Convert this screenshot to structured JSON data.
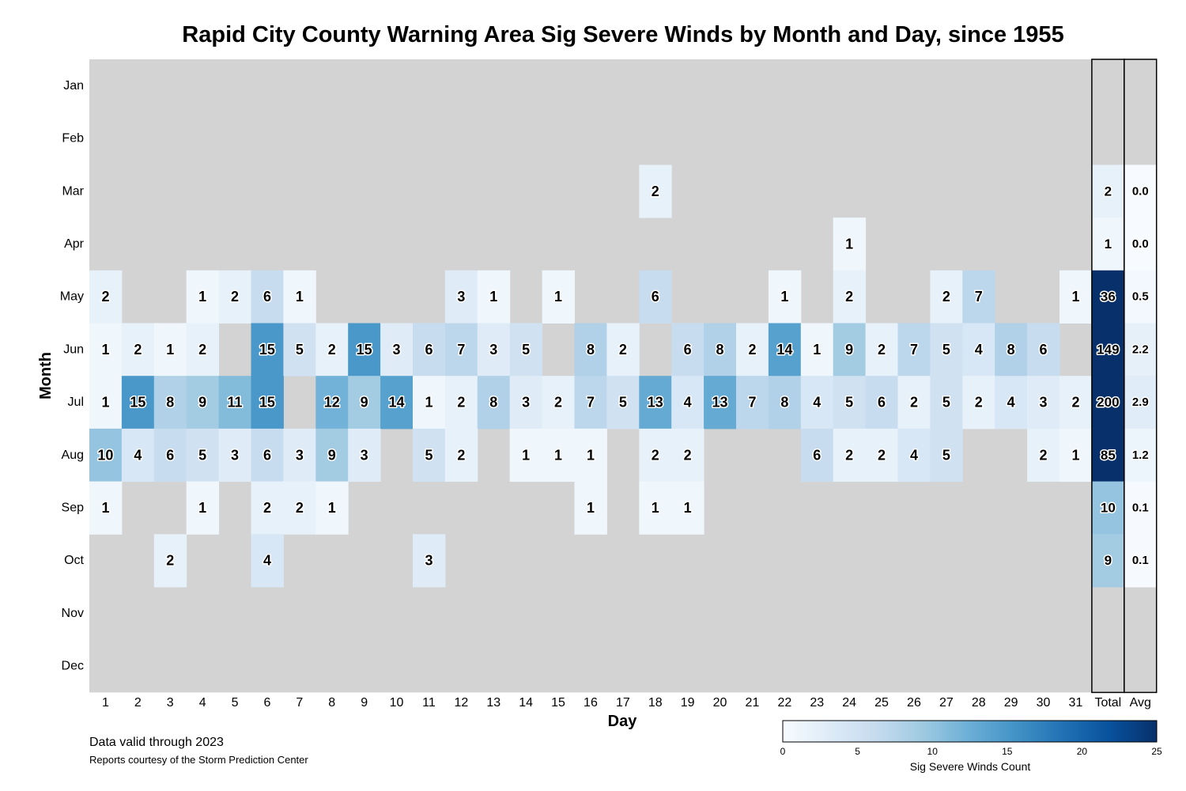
{
  "title": "Rapid City County Warning Area Sig Severe Winds by Month and Day, since 1955",
  "footnote_primary": "Data valid through 2023",
  "footnote_secondary": "Reports courtesy of the Storm Prediction Center",
  "colorbar": {
    "label": "Sig Severe Winds Count",
    "ticks": [
      0,
      5,
      10,
      15,
      20,
      25
    ],
    "min": 0,
    "max": 25,
    "colors": [
      "#f7fbff",
      "#deebf7",
      "#c6dbef",
      "#9ecae1",
      "#6baed6",
      "#4292c6",
      "#2171b5",
      "#08519c",
      "#08306b"
    ]
  },
  "chart_data": {
    "type": "heatmap",
    "title": "Rapid City County Warning Area Sig Severe Winds by Month and Day, since 1955",
    "xlabel": "Day",
    "ylabel": "Month",
    "x_tick_labels": [
      "1",
      "2",
      "3",
      "4",
      "5",
      "6",
      "7",
      "8",
      "9",
      "10",
      "11",
      "12",
      "13",
      "14",
      "15",
      "16",
      "17",
      "18",
      "19",
      "20",
      "21",
      "22",
      "23",
      "24",
      "25",
      "26",
      "27",
      "28",
      "29",
      "30",
      "31",
      "Total",
      "Avg"
    ],
    "months": [
      "Jan",
      "Feb",
      "Mar",
      "Apr",
      "May",
      "Jun",
      "Jul",
      "Aug",
      "Sep",
      "Oct",
      "Nov",
      "Dec"
    ],
    "missing_color": "#d3d3d3",
    "values": [
      [
        null,
        null,
        null,
        null,
        null,
        null,
        null,
        null,
        null,
        null,
        null,
        null,
        null,
        null,
        null,
        null,
        null,
        null,
        null,
        null,
        null,
        null,
        null,
        null,
        null,
        null,
        null,
        null,
        null,
        null,
        null
      ],
      [
        null,
        null,
        null,
        null,
        null,
        null,
        null,
        null,
        null,
        null,
        null,
        null,
        null,
        null,
        null,
        null,
        null,
        null,
        null,
        null,
        null,
        null,
        null,
        null,
        null,
        null,
        null,
        null,
        null,
        null,
        null
      ],
      [
        null,
        null,
        null,
        null,
        null,
        null,
        null,
        null,
        null,
        null,
        null,
        null,
        null,
        null,
        null,
        null,
        null,
        2,
        null,
        null,
        null,
        null,
        null,
        null,
        null,
        null,
        null,
        null,
        null,
        null,
        null
      ],
      [
        null,
        null,
        null,
        null,
        null,
        null,
        null,
        null,
        null,
        null,
        null,
        null,
        null,
        null,
        null,
        null,
        null,
        null,
        null,
        null,
        null,
        null,
        null,
        1,
        null,
        null,
        null,
        null,
        null,
        null,
        null
      ],
      [
        2,
        null,
        null,
        1,
        2,
        6,
        1,
        null,
        null,
        null,
        null,
        3,
        1,
        null,
        1,
        null,
        null,
        6,
        null,
        null,
        null,
        1,
        null,
        2,
        null,
        null,
        2,
        7,
        null,
        null,
        1
      ],
      [
        1,
        2,
        1,
        2,
        null,
        15,
        5,
        2,
        15,
        3,
        6,
        7,
        3,
        5,
        null,
        8,
        2,
        null,
        6,
        8,
        2,
        14,
        1,
        9,
        2,
        7,
        5,
        4,
        8,
        6,
        null
      ],
      [
        1,
        15,
        8,
        9,
        11,
        15,
        null,
        12,
        9,
        14,
        1,
        2,
        8,
        3,
        2,
        7,
        5,
        13,
        4,
        13,
        7,
        8,
        4,
        5,
        6,
        2,
        5,
        2,
        4,
        3,
        2
      ],
      [
        10,
        4,
        6,
        5,
        3,
        6,
        3,
        9,
        3,
        null,
        5,
        2,
        null,
        1,
        1,
        1,
        null,
        2,
        2,
        null,
        null,
        null,
        6,
        2,
        2,
        4,
        5,
        null,
        null,
        2,
        1
      ],
      [
        1,
        null,
        null,
        1,
        null,
        2,
        2,
        1,
        null,
        null,
        null,
        null,
        null,
        null,
        null,
        1,
        null,
        1,
        1,
        null,
        null,
        null,
        null,
        null,
        null,
        null,
        null,
        null,
        null,
        null,
        null
      ],
      [
        null,
        null,
        2,
        null,
        null,
        4,
        null,
        null,
        null,
        null,
        3,
        null,
        null,
        null,
        null,
        null,
        null,
        null,
        null,
        null,
        null,
        null,
        null,
        null,
        null,
        null,
        null,
        null,
        null,
        null,
        null
      ],
      [
        null,
        null,
        null,
        null,
        null,
        null,
        null,
        null,
        null,
        null,
        null,
        null,
        null,
        null,
        null,
        null,
        null,
        null,
        null,
        null,
        null,
        null,
        null,
        null,
        null,
        null,
        null,
        null,
        null,
        null,
        null
      ],
      [
        null,
        null,
        null,
        null,
        null,
        null,
        null,
        null,
        null,
        null,
        null,
        null,
        null,
        null,
        null,
        null,
        null,
        null,
        null,
        null,
        null,
        null,
        null,
        null,
        null,
        null,
        null,
        null,
        null,
        null,
        null
      ]
    ],
    "totals": [
      null,
      null,
      2,
      1,
      36,
      149,
      200,
      85,
      10,
      9,
      null,
      null
    ],
    "averages": [
      "",
      "",
      "0.0",
      "0.0",
      "0.5",
      "2.2",
      "2.9",
      "1.2",
      "0.1",
      "0.1",
      "",
      ""
    ]
  }
}
